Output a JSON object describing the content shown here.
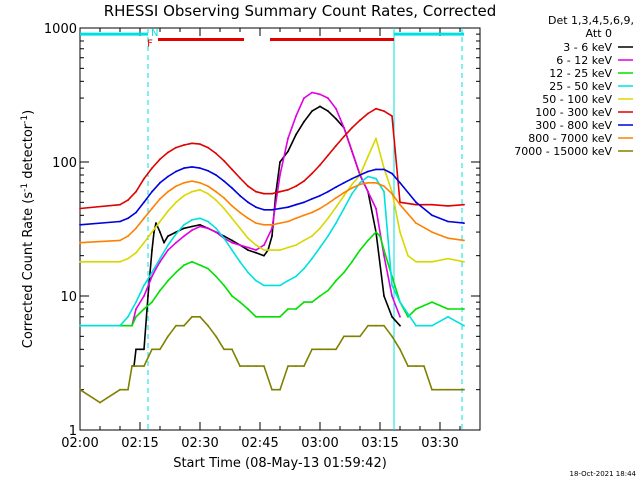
{
  "chart_data": {
    "type": "line",
    "title": "RHESSI Observing Summary Count Rates, Corrected",
    "xlabel": "Start Time (08-May-13 01:59:42)",
    "ylabel_parts": {
      "main": "Corrected Count Rate (s",
      "sup": "-1",
      "end": " detector",
      "sup2": "-1",
      "close": ")"
    },
    "ylabel": "Corrected Count Rate (s-1 detector-1)",
    "xlim": [
      0,
      100
    ],
    "ylim": [
      1,
      1000
    ],
    "yscale": "log",
    "x_units": "minutes after 02:00",
    "x_ticks": [
      {
        "value": 0,
        "label": "02:00"
      },
      {
        "value": 15,
        "label": "02:15"
      },
      {
        "value": 30,
        "label": "02:30"
      },
      {
        "value": 45,
        "label": "02:45"
      },
      {
        "value": 60,
        "label": "03:00"
      },
      {
        "value": 75,
        "label": "03:15"
      },
      {
        "value": 90,
        "label": "03:30"
      }
    ],
    "y_ticks": [
      {
        "value": 1,
        "label": "1"
      },
      {
        "value": 10,
        "label": "10"
      },
      {
        "value": 100,
        "label": "100"
      },
      {
        "value": 1000,
        "label": "1000"
      }
    ],
    "legend": {
      "placement": "right",
      "header_line1": "Det 1,3,4,5,6,9,",
      "header_line2": "Att 0"
    },
    "series": [
      {
        "name": "3 - 6 keV",
        "color": "#000000",
        "x": [
          13,
          13.5,
          14,
          15,
          16,
          17,
          18,
          18.5,
          19,
          20,
          21,
          22,
          24,
          26,
          28,
          30,
          32,
          34,
          36,
          38,
          40,
          42,
          44,
          46,
          47,
          48,
          49,
          50,
          52,
          54,
          56,
          58,
          60,
          62,
          64,
          66,
          68,
          70,
          72,
          74,
          76,
          78,
          80
        ],
        "y": [
          3,
          3,
          4,
          4,
          4,
          10,
          22,
          30,
          35,
          30,
          25,
          28,
          30,
          32,
          33,
          34,
          32,
          30,
          28,
          26,
          24,
          22,
          21,
          20,
          22,
          28,
          60,
          100,
          120,
          160,
          200,
          240,
          260,
          240,
          210,
          180,
          120,
          80,
          60,
          30,
          10,
          7,
          6
        ]
      },
      {
        "name": "6 - 12 keV",
        "color": "#e000e0",
        "x": [
          13,
          14,
          16,
          18,
          19,
          20,
          22,
          24,
          26,
          28,
          30,
          32,
          34,
          36,
          38,
          40,
          42,
          44,
          46,
          48,
          50,
          52,
          54,
          56,
          58,
          60,
          62,
          64,
          66,
          68,
          70,
          72,
          74,
          76,
          78,
          80
        ],
        "y": [
          6,
          8,
          10,
          14,
          16,
          18,
          22,
          25,
          28,
          31,
          33,
          32,
          30,
          27,
          25,
          24,
          23,
          22,
          24,
          32,
          80,
          150,
          220,
          300,
          330,
          320,
          300,
          250,
          180,
          120,
          80,
          60,
          45,
          20,
          10,
          7
        ]
      },
      {
        "name": "12 - 25 keV",
        "color": "#00e000",
        "x": [
          0,
          10,
          12,
          13,
          14,
          16,
          18,
          20,
          22,
          24,
          26,
          28,
          30,
          32,
          34,
          36,
          38,
          40,
          42,
          44,
          46,
          48,
          50,
          52,
          54,
          56,
          58,
          60,
          62,
          64,
          66,
          68,
          70,
          72,
          74,
          75,
          76,
          78,
          80,
          82,
          84,
          88,
          92,
          96
        ],
        "y": [
          6,
          6,
          6,
          6,
          7,
          8,
          9,
          11,
          13,
          15,
          17,
          18,
          17,
          16,
          14,
          12,
          10,
          9,
          8,
          7,
          7,
          7,
          7,
          8,
          8,
          9,
          9,
          10,
          11,
          13,
          15,
          18,
          22,
          26,
          30,
          28,
          22,
          14,
          9,
          7,
          8,
          9,
          8,
          8
        ]
      },
      {
        "name": "25 - 50 keV",
        "color": "#00e0e0",
        "x": [
          0,
          10,
          12,
          14,
          16,
          18,
          20,
          22,
          24,
          26,
          28,
          30,
          32,
          34,
          36,
          38,
          40,
          42,
          44,
          46,
          48,
          50,
          52,
          54,
          56,
          58,
          60,
          62,
          64,
          66,
          68,
          70,
          72,
          74,
          76,
          78,
          80,
          84,
          88,
          92,
          96
        ],
        "y": [
          6,
          6,
          7,
          9,
          12,
          15,
          19,
          24,
          29,
          34,
          37,
          38,
          36,
          32,
          27,
          22,
          18,
          15,
          13,
          12,
          12,
          12,
          13,
          14,
          16,
          19,
          23,
          28,
          35,
          45,
          58,
          70,
          78,
          75,
          60,
          12,
          9,
          6,
          6,
          7,
          6
        ]
      },
      {
        "name": "50 - 100 keV",
        "color": "#d8d800",
        "x": [
          0,
          10,
          12,
          14,
          16,
          18,
          20,
          22,
          24,
          26,
          28,
          30,
          32,
          34,
          36,
          38,
          40,
          42,
          44,
          46,
          48,
          50,
          52,
          54,
          56,
          58,
          60,
          62,
          64,
          66,
          68,
          70,
          72,
          74,
          76,
          78,
          80,
          82,
          84,
          88,
          92,
          96
        ],
        "y": [
          18,
          18,
          19,
          21,
          25,
          30,
          36,
          43,
          50,
          56,
          60,
          62,
          58,
          52,
          45,
          38,
          32,
          27,
          24,
          22,
          22,
          22,
          23,
          24,
          26,
          28,
          32,
          38,
          46,
          56,
          68,
          80,
          110,
          150,
          90,
          60,
          30,
          20,
          18,
          18,
          19,
          18
        ]
      },
      {
        "name": "100 - 300 keV",
        "color": "#e00000",
        "x": [
          0,
          10,
          12,
          14,
          16,
          18,
          20,
          22,
          24,
          26,
          28,
          30,
          32,
          34,
          36,
          38,
          40,
          42,
          44,
          46,
          48,
          50,
          52,
          54,
          56,
          58,
          60,
          62,
          64,
          66,
          68,
          70,
          72,
          74,
          76,
          78,
          80,
          84,
          88,
          92,
          96
        ],
        "y": [
          45,
          48,
          52,
          60,
          75,
          90,
          105,
          118,
          128,
          134,
          138,
          136,
          128,
          116,
          102,
          88,
          76,
          66,
          60,
          58,
          58,
          60,
          62,
          66,
          72,
          82,
          95,
          112,
          132,
          155,
          180,
          205,
          230,
          250,
          240,
          220,
          50,
          48,
          48,
          47,
          48
        ]
      },
      {
        "name": "300 - 800 keV",
        "color": "#0000e0",
        "x": [
          0,
          10,
          12,
          14,
          16,
          18,
          20,
          22,
          24,
          26,
          28,
          30,
          32,
          34,
          36,
          38,
          40,
          42,
          44,
          46,
          48,
          50,
          52,
          54,
          56,
          58,
          60,
          62,
          64,
          66,
          68,
          70,
          72,
          74,
          76,
          78,
          80,
          84,
          88,
          92,
          96
        ],
        "y": [
          34,
          36,
          38,
          42,
          50,
          60,
          70,
          78,
          85,
          90,
          92,
          90,
          86,
          80,
          72,
          64,
          56,
          50,
          46,
          44,
          44,
          45,
          46,
          48,
          50,
          53,
          56,
          60,
          65,
          70,
          75,
          80,
          85,
          88,
          88,
          82,
          70,
          50,
          40,
          36,
          35
        ]
      },
      {
        "name": "800 - 7000 keV",
        "color": "#ff8000",
        "x": [
          0,
          10,
          12,
          14,
          16,
          18,
          20,
          22,
          24,
          26,
          28,
          30,
          32,
          34,
          36,
          38,
          40,
          42,
          44,
          46,
          48,
          50,
          52,
          54,
          56,
          58,
          60,
          62,
          64,
          66,
          68,
          70,
          72,
          74,
          76,
          78,
          80,
          84,
          88,
          92,
          96
        ],
        "y": [
          25,
          26,
          28,
          32,
          38,
          45,
          53,
          60,
          66,
          70,
          72,
          70,
          66,
          60,
          54,
          47,
          42,
          38,
          35,
          34,
          34,
          35,
          36,
          38,
          40,
          42,
          45,
          49,
          54,
          59,
          64,
          68,
          70,
          70,
          66,
          58,
          48,
          35,
          30,
          27,
          26
        ]
      },
      {
        "name": "7000 - 15000 keV",
        "color": "#808000",
        "x": [
          0,
          5,
          10,
          12,
          13,
          14,
          16,
          18,
          20,
          22,
          24,
          26,
          28,
          30,
          32,
          34,
          36,
          38,
          40,
          42,
          44,
          46,
          48,
          50,
          52,
          54,
          56,
          58,
          60,
          62,
          64,
          66,
          68,
          70,
          72,
          74,
          76,
          78,
          80,
          82,
          84,
          86,
          88,
          92,
          96
        ],
        "y": [
          2,
          1.6,
          2,
          2,
          3,
          3,
          3,
          4,
          4,
          5,
          6,
          6,
          7,
          7,
          6,
          5,
          4,
          4,
          3,
          3,
          3,
          3,
          2,
          2,
          3,
          3,
          3,
          4,
          4,
          4,
          4,
          5,
          5,
          5,
          6,
          6,
          6,
          5,
          4,
          3,
          3,
          3,
          2,
          2,
          2
        ]
      }
    ],
    "annotations": {
      "status_bars": [
        {
          "name": "saa-bar-left",
          "color": "#00e0e0",
          "x": [
            0,
            17
          ],
          "y": 900
        },
        {
          "name": "flare-bar-1",
          "color": "#e00000",
          "x": [
            19.5,
            41
          ],
          "y": 820
        },
        {
          "name": "flare-bar-2",
          "color": "#e00000",
          "x": [
            47.5,
            78.5
          ],
          "y": 820
        },
        {
          "name": "saa-bar-right",
          "color": "#00e0e0",
          "x": [
            78.5,
            96
          ],
          "y": 900
        }
      ],
      "vertical_lines": [
        {
          "x": 17,
          "color": "#00e0e0",
          "style": "dashed"
        },
        {
          "x": 78.5,
          "color": "#00e0e0",
          "style": "solid"
        },
        {
          "x": 95.5,
          "color": "#00e0e0",
          "style": "dashed"
        }
      ],
      "markers": [
        {
          "text": "N",
          "x": 18.7,
          "y": 930,
          "color": "#00e0e0"
        },
        {
          "text": "F",
          "x": 17.5,
          "y": 780,
          "color": "#e00000"
        }
      ]
    }
  },
  "footer": {
    "timestamp": "18-Oct-2021 18:44"
  }
}
